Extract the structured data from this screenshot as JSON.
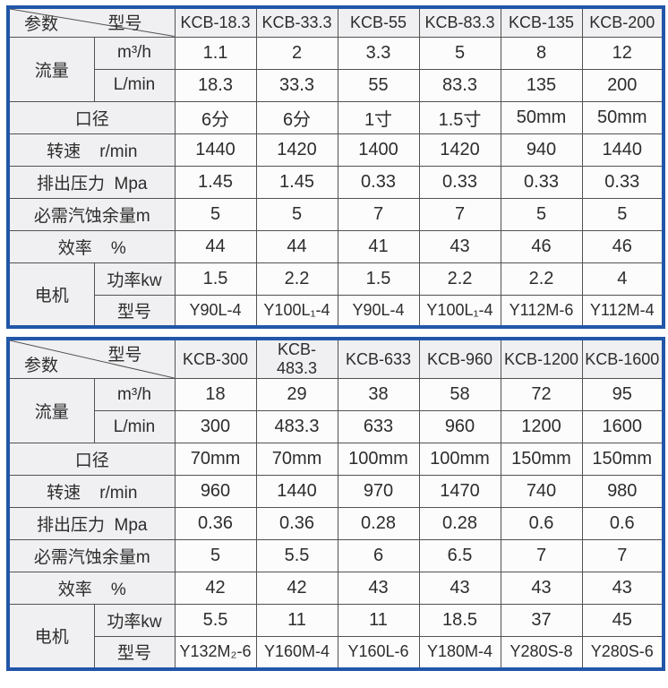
{
  "colors": {
    "frame_blue": "#2156a8",
    "grid_line": "#525252",
    "label_bg": "#f0eff1",
    "cell_bg": "#fcfcfd",
    "text": "#2d2d2d"
  },
  "tables": [
    {
      "corner": {
        "top_label": "型号",
        "bottom_label": "参数"
      },
      "models": [
        "KCB-18.3",
        "KCB-33.3",
        "KCB-55",
        "KCB-83.3",
        "KCB-135",
        "KCB-200"
      ],
      "groups": {
        "flow": {
          "label": "流量",
          "sub_rows": [
            {
              "label": "m³/h",
              "values": [
                "1.1",
                "2",
                "3.3",
                "5",
                "8",
                "12"
              ]
            },
            {
              "label": "L/min",
              "values": [
                "18.3",
                "33.3",
                "55",
                "83.3",
                "135",
                "200"
              ]
            }
          ]
        },
        "motor": {
          "label": "电机",
          "sub_rows": [
            {
              "label": "功率kw",
              "values": [
                "1.5",
                "2.2",
                "1.5",
                "2.2",
                "2.2",
                "4"
              ]
            },
            {
              "label": "型号",
              "values": [
                "Y90L-4",
                "Y100L₁-4",
                "Y90L-4",
                "Y100L₁-4",
                "Y112M-6",
                "Y112M-4"
              ]
            }
          ]
        }
      },
      "param_rows": [
        {
          "label": "口径",
          "values": [
            "6分",
            "6分",
            "1寸",
            "1.5寸",
            "50mm",
            "50mm"
          ]
        },
        {
          "label": "转速    r/min",
          "values": [
            "1440",
            "1420",
            "1400",
            "1420",
            "940",
            "1440"
          ]
        },
        {
          "label": "排出压力  Mpa",
          "values": [
            "1.45",
            "1.45",
            "0.33",
            "0.33",
            "0.33",
            "0.33"
          ]
        },
        {
          "label": "必需汽蚀余量m",
          "values": [
            "5",
            "5",
            "7",
            "7",
            "5",
            "5"
          ]
        },
        {
          "label": "效率    %",
          "values": [
            "44",
            "44",
            "41",
            "43",
            "46",
            "46"
          ]
        }
      ]
    },
    {
      "corner": {
        "top_label": "型号",
        "bottom_label": "参数"
      },
      "models": [
        "KCB-300",
        "KCB-483.3",
        "KCB-633",
        "KCB-960",
        "KCB-1200",
        "KCB-1600"
      ],
      "groups": {
        "flow": {
          "label": "流量",
          "sub_rows": [
            {
              "label": "m³/h",
              "values": [
                "18",
                "29",
                "38",
                "58",
                "72",
                "95"
              ]
            },
            {
              "label": "L/min",
              "values": [
                "300",
                "483.3",
                "633",
                "960",
                "1200",
                "1600"
              ]
            }
          ]
        },
        "motor": {
          "label": "电机",
          "sub_rows": [
            {
              "label": "功率kw",
              "values": [
                "5.5",
                "11",
                "11",
                "18.5",
                "37",
                "45"
              ]
            },
            {
              "label": "型号",
              "values": [
                "Y132M₂-6",
                "Y160M-4",
                "Y160L-6",
                "Y180M-4",
                "Y280S-8",
                "Y280S-6"
              ]
            }
          ]
        }
      },
      "param_rows": [
        {
          "label": "口径",
          "values": [
            "70mm",
            "70mm",
            "100mm",
            "100mm",
            "150mm",
            "150mm"
          ]
        },
        {
          "label": "转速    r/min",
          "values": [
            "960",
            "1440",
            "970",
            "1470",
            "740",
            "980"
          ]
        },
        {
          "label": "排出压力  Mpa",
          "values": [
            "0.36",
            "0.36",
            "0.28",
            "0.28",
            "0.6",
            "0.6"
          ]
        },
        {
          "label": "必需汽蚀余量m",
          "values": [
            "5",
            "5.5",
            "6",
            "6.5",
            "7",
            "7"
          ]
        },
        {
          "label": "效率    %",
          "values": [
            "42",
            "42",
            "43",
            "43",
            "43",
            "43"
          ]
        }
      ]
    }
  ]
}
